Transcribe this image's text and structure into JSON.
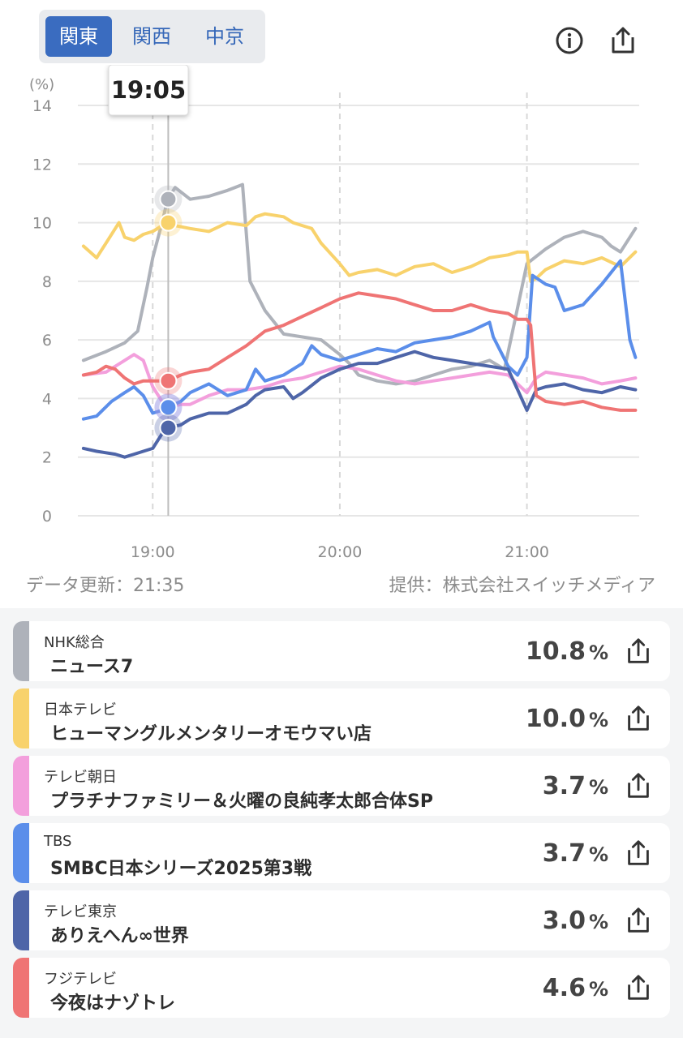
{
  "region_tabs": [
    {
      "label": "関東",
      "active": true
    },
    {
      "label": "関西",
      "active": false
    },
    {
      "label": "中京",
      "active": false
    }
  ],
  "icons": {
    "info": "info-icon",
    "share": "share-icon"
  },
  "tooltip_time": "19:05",
  "footer": {
    "updated": "データ更新：21:35",
    "source": "提供：株式会社スイッチメディア"
  },
  "chart_data": {
    "type": "line",
    "ylabel": "(%)",
    "ylim": [
      0,
      14
    ],
    "yticks": [
      "0",
      "2",
      "4",
      "6",
      "8",
      "10",
      "12",
      "14"
    ],
    "xlim": [
      18.6,
      21.6
    ],
    "xticks": [
      {
        "value": 19.0,
        "label": "19:00"
      },
      {
        "value": 20.0,
        "label": "20:00"
      },
      {
        "value": 21.0,
        "label": "21:00"
      }
    ],
    "cursor_x": 19.083,
    "series": [
      {
        "name": "NHK総合",
        "color": "#aeb2ba",
        "marker": 10.8,
        "x": [
          18.63,
          18.75,
          18.85,
          18.92,
          18.97,
          19.0,
          19.05,
          19.08,
          19.12,
          19.2,
          19.3,
          19.4,
          19.48,
          19.52,
          19.6,
          19.7,
          19.8,
          19.9,
          20.0,
          20.05,
          20.1,
          20.2,
          20.3,
          20.4,
          20.5,
          20.6,
          20.7,
          20.8,
          20.88,
          20.93,
          21.0,
          21.1,
          21.2,
          21.3,
          21.4,
          21.45,
          21.5,
          21.58
        ],
        "y": [
          5.3,
          5.6,
          5.9,
          6.3,
          7.8,
          8.8,
          10.0,
          10.8,
          11.2,
          10.8,
          10.9,
          11.1,
          11.3,
          8.0,
          7.0,
          6.2,
          6.1,
          6.0,
          5.5,
          5.2,
          4.8,
          4.6,
          4.5,
          4.6,
          4.8,
          5.0,
          5.1,
          5.3,
          5.0,
          6.5,
          8.6,
          9.1,
          9.5,
          9.7,
          9.5,
          9.2,
          9.0,
          9.8
        ]
      },
      {
        "name": "日本テレビ",
        "color": "#f8d26c",
        "marker": 10.0,
        "x": [
          18.63,
          18.7,
          18.75,
          18.82,
          18.85,
          18.9,
          18.95,
          19.0,
          19.05,
          19.08,
          19.12,
          19.2,
          19.3,
          19.4,
          19.5,
          19.55,
          19.6,
          19.7,
          19.75,
          19.85,
          19.9,
          20.0,
          20.05,
          20.1,
          20.2,
          20.3,
          20.4,
          20.5,
          20.6,
          20.7,
          20.8,
          20.9,
          20.95,
          21.0,
          21.02,
          21.05,
          21.1,
          21.2,
          21.3,
          21.4,
          21.5,
          21.58
        ],
        "y": [
          9.2,
          8.8,
          9.3,
          10.0,
          9.5,
          9.4,
          9.6,
          9.7,
          9.9,
          10.0,
          9.9,
          9.8,
          9.7,
          10.0,
          9.9,
          10.2,
          10.3,
          10.2,
          10.0,
          9.8,
          9.3,
          8.6,
          8.2,
          8.3,
          8.4,
          8.2,
          8.5,
          8.6,
          8.3,
          8.5,
          8.8,
          8.9,
          9.0,
          9.0,
          8.0,
          8.1,
          8.4,
          8.7,
          8.6,
          8.8,
          8.5,
          9.0
        ]
      },
      {
        "name": "テレビ朝日",
        "color": "#f39fdc",
        "marker": 3.7,
        "x": [
          18.63,
          18.75,
          18.85,
          18.9,
          18.95,
          19.0,
          19.05,
          19.08,
          19.15,
          19.2,
          19.3,
          19.4,
          19.5,
          19.6,
          19.7,
          19.8,
          19.9,
          20.0,
          20.1,
          20.2,
          20.3,
          20.4,
          20.5,
          20.6,
          20.7,
          20.8,
          20.9,
          20.95,
          21.0,
          21.05,
          21.1,
          21.2,
          21.3,
          21.4,
          21.5,
          21.58
        ],
        "y": [
          4.8,
          4.9,
          5.3,
          5.5,
          5.3,
          4.4,
          3.9,
          3.7,
          3.8,
          3.8,
          4.1,
          4.3,
          4.3,
          4.4,
          4.6,
          4.7,
          4.9,
          5.1,
          5.0,
          4.8,
          4.6,
          4.5,
          4.6,
          4.7,
          4.8,
          4.9,
          4.8,
          4.5,
          4.2,
          4.7,
          4.9,
          4.8,
          4.7,
          4.5,
          4.6,
          4.7
        ]
      },
      {
        "name": "TBS",
        "color": "#5b8eea",
        "marker": 3.7,
        "x": [
          18.63,
          18.7,
          18.78,
          18.85,
          18.9,
          18.95,
          19.0,
          19.05,
          19.08,
          19.15,
          19.2,
          19.3,
          19.4,
          19.5,
          19.55,
          19.6,
          19.7,
          19.8,
          19.85,
          19.9,
          20.0,
          20.1,
          20.2,
          20.3,
          20.4,
          20.5,
          20.6,
          20.7,
          20.8,
          20.82,
          20.9,
          20.95,
          21.0,
          21.03,
          21.1,
          21.15,
          21.2,
          21.3,
          21.4,
          21.45,
          21.5,
          21.55,
          21.58
        ],
        "y": [
          3.3,
          3.4,
          3.9,
          4.2,
          4.4,
          4.1,
          3.5,
          3.6,
          3.7,
          3.9,
          4.2,
          4.5,
          4.1,
          4.3,
          5.0,
          4.6,
          4.8,
          5.2,
          5.8,
          5.5,
          5.3,
          5.5,
          5.7,
          5.6,
          5.9,
          6.0,
          6.1,
          6.3,
          6.6,
          6.1,
          5.1,
          4.8,
          5.4,
          8.2,
          7.9,
          7.8,
          7.0,
          7.2,
          7.9,
          8.3,
          8.7,
          6.0,
          5.4
        ]
      },
      {
        "name": "テレビ東京",
        "color": "#4e65a8",
        "marker": 3.0,
        "x": [
          18.63,
          18.7,
          18.8,
          18.85,
          18.9,
          18.95,
          19.0,
          19.05,
          19.08,
          19.15,
          19.2,
          19.3,
          19.4,
          19.5,
          19.55,
          19.6,
          19.7,
          19.75,
          19.8,
          19.9,
          20.0,
          20.1,
          20.2,
          20.3,
          20.4,
          20.5,
          20.6,
          20.7,
          20.8,
          20.9,
          20.95,
          21.0,
          21.05,
          21.1,
          21.2,
          21.3,
          21.4,
          21.5,
          21.58
        ],
        "y": [
          2.3,
          2.2,
          2.1,
          2.0,
          2.1,
          2.2,
          2.3,
          2.8,
          3.0,
          3.1,
          3.3,
          3.5,
          3.5,
          3.8,
          4.1,
          4.3,
          4.4,
          4.0,
          4.2,
          4.7,
          5.0,
          5.2,
          5.2,
          5.4,
          5.6,
          5.4,
          5.3,
          5.2,
          5.1,
          5.0,
          4.3,
          3.6,
          4.3,
          4.4,
          4.5,
          4.3,
          4.2,
          4.4,
          4.3
        ]
      },
      {
        "name": "フジテレビ",
        "color": "#ef7474",
        "marker": 4.6,
        "x": [
          18.63,
          18.7,
          18.75,
          18.8,
          18.85,
          18.9,
          18.95,
          19.0,
          19.05,
          19.08,
          19.15,
          19.2,
          19.3,
          19.4,
          19.5,
          19.6,
          19.7,
          19.8,
          19.9,
          20.0,
          20.1,
          20.2,
          20.3,
          20.4,
          20.5,
          20.6,
          20.7,
          20.8,
          20.9,
          20.95,
          21.0,
          21.02,
          21.05,
          21.1,
          21.2,
          21.3,
          21.4,
          21.5,
          21.58
        ],
        "y": [
          4.8,
          4.9,
          5.1,
          5.0,
          4.7,
          4.5,
          4.6,
          4.6,
          4.6,
          4.6,
          4.8,
          4.9,
          5.0,
          5.4,
          5.8,
          6.3,
          6.5,
          6.8,
          7.1,
          7.4,
          7.6,
          7.5,
          7.4,
          7.2,
          7.0,
          7.0,
          7.2,
          7.0,
          6.9,
          6.7,
          6.7,
          6.5,
          4.1,
          3.9,
          3.8,
          3.9,
          3.7,
          3.6,
          3.6
        ]
      }
    ]
  },
  "programs": [
    {
      "station": "NHK総合",
      "title": "ニュース7",
      "rating": "10.8",
      "unit": "%",
      "color": "#aeb2ba"
    },
    {
      "station": "日本テレビ",
      "title": "ヒューマングルメンタリーオモウマい店",
      "rating": "10.0",
      "unit": "%",
      "color": "#f8d26c"
    },
    {
      "station": "テレビ朝日",
      "title": "プラチナファミリー＆火曜の良純孝太郎合体SP",
      "rating": "3.7",
      "unit": "%",
      "color": "#f39fdc"
    },
    {
      "station": "TBS",
      "title": "SMBC日本シリーズ2025第3戦",
      "rating": "3.7",
      "unit": "%",
      "color": "#5b8eea"
    },
    {
      "station": "テレビ東京",
      "title": "ありえへん∞世界",
      "rating": "3.0",
      "unit": "%",
      "color": "#4e65a8"
    },
    {
      "station": "フジテレビ",
      "title": "今夜はナゾトレ",
      "rating": "4.6",
      "unit": "%",
      "color": "#ef7474"
    }
  ]
}
